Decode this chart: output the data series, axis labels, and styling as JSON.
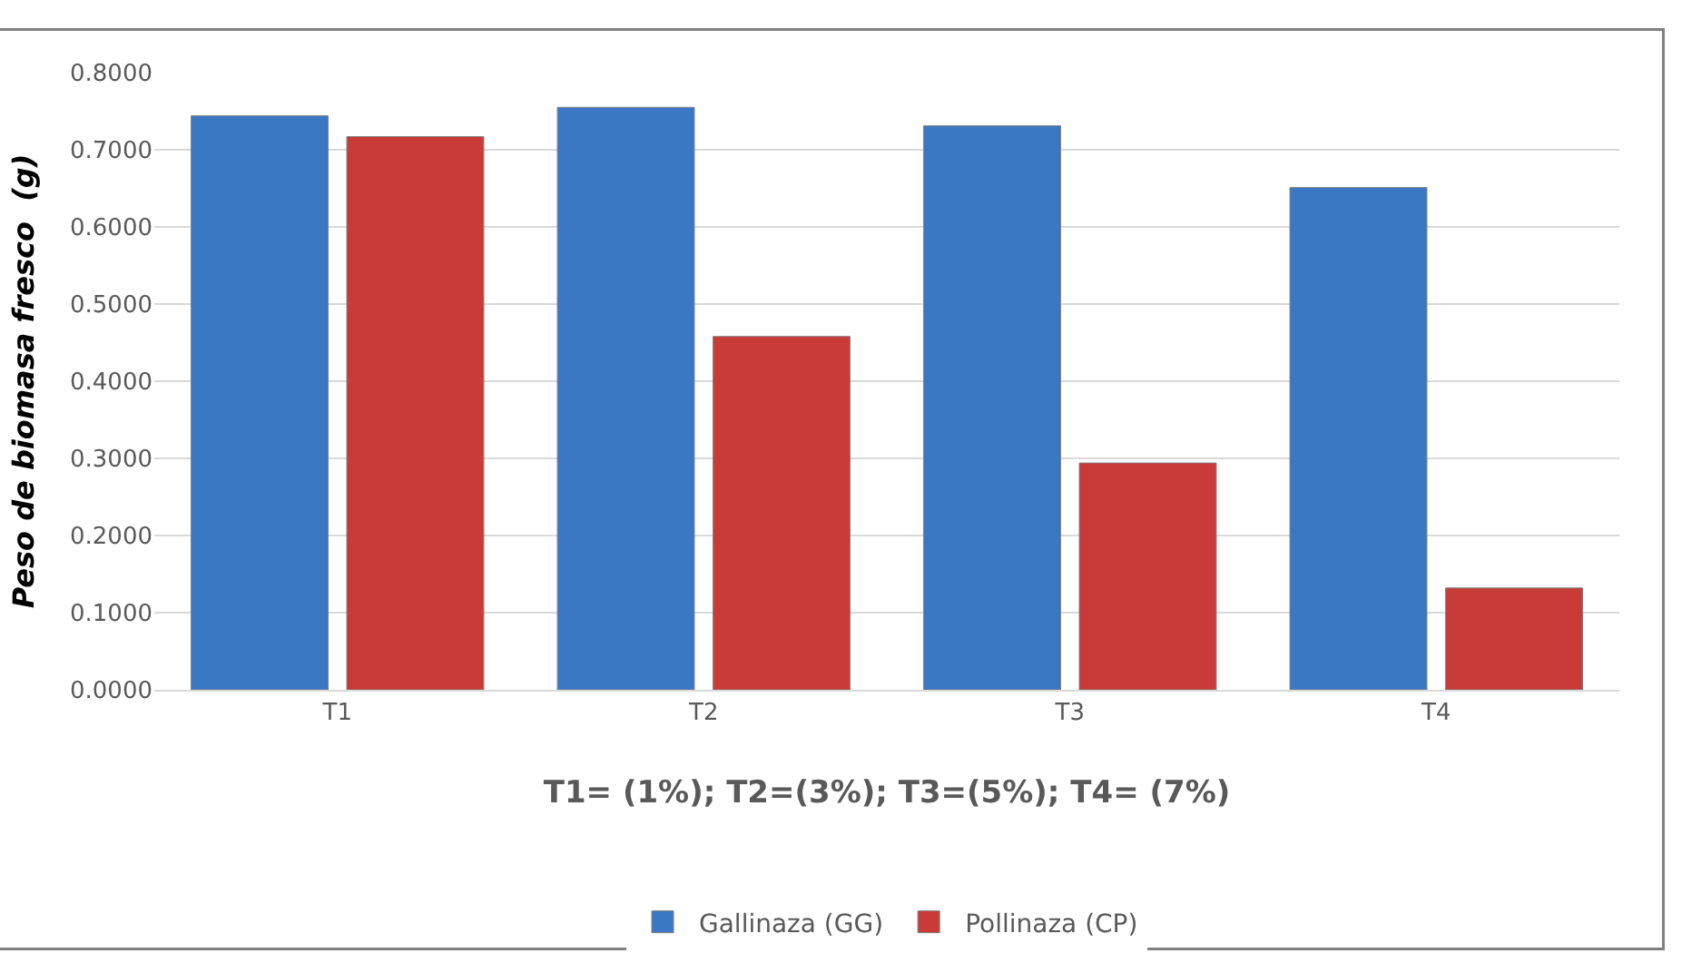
{
  "chart_data": {
    "type": "bar",
    "ylabel": "Peso de biomasa fresco  (g)",
    "xlabel": "T1= (1%); T2=(3%); T3=(5%); T4= (7%)",
    "categories": [
      "T1",
      "T2",
      "T3",
      "T4"
    ],
    "series": [
      {
        "name": "Gallinaza (GG)",
        "color": "#3a78c4",
        "values": [
          0.744,
          0.755,
          0.731,
          0.651
        ]
      },
      {
        "name": "Pollinaza (CP)",
        "color": "#c93b38",
        "values": [
          0.717,
          0.458,
          0.294,
          0.132
        ]
      }
    ],
    "ylim": [
      0,
      0.8
    ],
    "yticks": [
      {
        "value": 0,
        "label": "0.0000"
      },
      {
        "value": 0.1,
        "label": "0.1000"
      },
      {
        "value": 0.2,
        "label": "0.2000"
      },
      {
        "value": 0.3,
        "label": "0.3000"
      },
      {
        "value": 0.4,
        "label": "0.4000"
      },
      {
        "value": 0.5,
        "label": "0.5000"
      },
      {
        "value": 0.6,
        "label": "0.6000"
      },
      {
        "value": 0.7,
        "label": "0.7000"
      },
      {
        "value": 0.8,
        "label": "0.8000"
      }
    ],
    "grid": "y",
    "legend": "bottom"
  }
}
